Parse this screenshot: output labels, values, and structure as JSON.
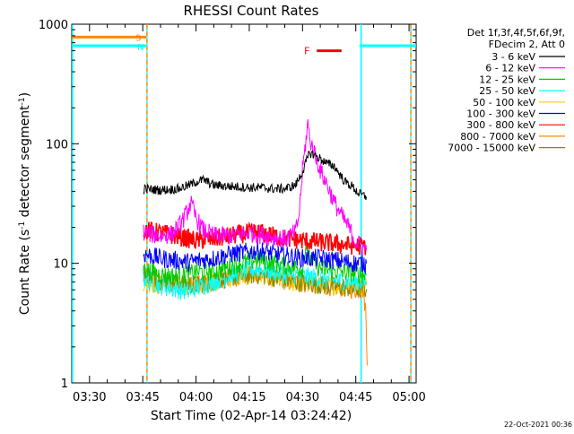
{
  "chart_data": {
    "type": "line",
    "title": "RHESSI Count Rates",
    "xlabel": "Start Time (02-Apr-14 03:24:42)",
    "ylabel_main": "Count Rate (s",
    "ylabel_sup1": "-1",
    "ylabel_mid": " detector segment",
    "ylabel_sup2": "-1",
    "ylabel_end": ")",
    "y_scale": "log",
    "ylim": [
      1,
      1000
    ],
    "xlim_minutes": [
      205,
      302
    ],
    "x_ticks": [
      {
        "min": 210,
        "label": "03:30"
      },
      {
        "min": 225,
        "label": "03:45"
      },
      {
        "min": 240,
        "label": "04:00"
      },
      {
        "min": 255,
        "label": "04:15"
      },
      {
        "min": 270,
        "label": "04:30"
      },
      {
        "min": 285,
        "label": "04:45"
      },
      {
        "min": 300,
        "label": "05:00"
      }
    ],
    "y_ticks": [
      {
        "value": 1,
        "label": "1"
      },
      {
        "value": 10,
        "label": "10"
      },
      {
        "value": 100,
        "label": "100"
      },
      {
        "value": 1000,
        "label": "1000"
      }
    ],
    "legend_header": [
      "Det 1f,3f,4f,5f,6f,9f,",
      "FDecim 2, Att 0"
    ],
    "legend_position": "right, outside plot",
    "series": [
      {
        "name": "3 - 6 keV",
        "color": "#000000",
        "points": [
          [
            225.2,
            42
          ],
          [
            230,
            41
          ],
          [
            235,
            42
          ],
          [
            238,
            45
          ],
          [
            240,
            48
          ],
          [
            242,
            50
          ],
          [
            245,
            45
          ],
          [
            250,
            44
          ],
          [
            255,
            43
          ],
          [
            258,
            43
          ],
          [
            262,
            42
          ],
          [
            265,
            42
          ],
          [
            268,
            45
          ],
          [
            270,
            58
          ],
          [
            271,
            70
          ],
          [
            272,
            84
          ],
          [
            273,
            82
          ],
          [
            275,
            75
          ],
          [
            277,
            68
          ],
          [
            279,
            65
          ],
          [
            280,
            58
          ],
          [
            282,
            48
          ],
          [
            284,
            44
          ],
          [
            286,
            38
          ],
          [
            288,
            36
          ]
        ]
      },
      {
        "name": "6 - 12 keV",
        "color": "#ff00ff",
        "points": [
          [
            225.2,
            18
          ],
          [
            230,
            17
          ],
          [
            233,
            17.5
          ],
          [
            235,
            20
          ],
          [
            237,
            25
          ],
          [
            238.5,
            32
          ],
          [
            240,
            24
          ],
          [
            242,
            19
          ],
          [
            245,
            17
          ],
          [
            250,
            17
          ],
          [
            255,
            18
          ],
          [
            260,
            17
          ],
          [
            265,
            16
          ],
          [
            268,
            18
          ],
          [
            269,
            25
          ],
          [
            270,
            60
          ],
          [
            271,
            110
          ],
          [
            271.5,
            150
          ],
          [
            272,
            110
          ],
          [
            273,
            90
          ],
          [
            275,
            60
          ],
          [
            277,
            45
          ],
          [
            279,
            32
          ],
          [
            281,
            25
          ],
          [
            283,
            20
          ],
          [
            285,
            15
          ],
          [
            288,
            13
          ]
        ]
      },
      {
        "name": "12 - 25 keV",
        "color": "#00cc00",
        "points": [
          [
            225.2,
            9
          ],
          [
            230,
            8
          ],
          [
            235,
            7.8
          ],
          [
            240,
            8.5
          ],
          [
            245,
            8.5
          ],
          [
            250,
            9.5
          ],
          [
            255,
            10.5
          ],
          [
            258,
            10.8
          ],
          [
            262,
            10
          ],
          [
            266,
            9.5
          ],
          [
            270,
            9
          ],
          [
            271,
            15
          ],
          [
            272,
            11
          ],
          [
            275,
            9
          ],
          [
            280,
            8.6
          ],
          [
            285,
            8.2
          ],
          [
            288,
            8
          ]
        ]
      },
      {
        "name": "25 - 50 keV",
        "color": "#00ffff",
        "points": [
          [
            225.2,
            7.5
          ],
          [
            230,
            6.5
          ],
          [
            235,
            6
          ],
          [
            238,
            5.8
          ],
          [
            240,
            6.2
          ],
          [
            245,
            7
          ],
          [
            250,
            8
          ],
          [
            255,
            8.8
          ],
          [
            258,
            9
          ],
          [
            262,
            8.5
          ],
          [
            266,
            8
          ],
          [
            270,
            7.8
          ],
          [
            275,
            7.5
          ],
          [
            280,
            7.2
          ],
          [
            285,
            7
          ],
          [
            288,
            7
          ]
        ]
      },
      {
        "name": "50 - 100 keV",
        "color": "#ffcc00",
        "points": [
          [
            225.2,
            7
          ],
          [
            230,
            6.5
          ],
          [
            240,
            6.5
          ],
          [
            250,
            7.5
          ],
          [
            258,
            8
          ],
          [
            265,
            7
          ],
          [
            275,
            6.5
          ],
          [
            288,
            6.5
          ]
        ]
      },
      {
        "name": "100 - 300 keV",
        "color": "#0000ff",
        "points": [
          [
            225.2,
            12
          ],
          [
            230,
            11
          ],
          [
            235,
            10.5
          ],
          [
            238,
            10.2
          ],
          [
            240,
            10.5
          ],
          [
            245,
            11
          ],
          [
            250,
            12
          ],
          [
            255,
            12.5
          ],
          [
            258,
            12.8
          ],
          [
            262,
            12
          ],
          [
            266,
            11.5
          ],
          [
            270,
            11
          ],
          [
            275,
            11
          ],
          [
            280,
            10.5
          ],
          [
            285,
            10
          ],
          [
            288,
            10
          ]
        ]
      },
      {
        "name": "300 - 800 keV",
        "color": "#ff0000",
        "points": [
          [
            225.2,
            19
          ],
          [
            230,
            18
          ],
          [
            235,
            16.8
          ],
          [
            240,
            15.5
          ],
          [
            245,
            16
          ],
          [
            250,
            17
          ],
          [
            255,
            18
          ],
          [
            258,
            18
          ],
          [
            262,
            17
          ],
          [
            266,
            16
          ],
          [
            270,
            15.5
          ],
          [
            275,
            15
          ],
          [
            280,
            14.5
          ],
          [
            285,
            14
          ],
          [
            288,
            14
          ]
        ]
      },
      {
        "name": "800 - 7000 keV",
        "color": "#ff8800",
        "points": [
          [
            225.2,
            8
          ],
          [
            230,
            7
          ],
          [
            235,
            6.5
          ],
          [
            240,
            6.5
          ],
          [
            245,
            7
          ],
          [
            250,
            7.5
          ],
          [
            255,
            8
          ],
          [
            258,
            8
          ],
          [
            262,
            7.5
          ],
          [
            266,
            7
          ],
          [
            270,
            6.8
          ],
          [
            275,
            6.5
          ],
          [
            280,
            6.3
          ],
          [
            285,
            6
          ],
          [
            287,
            6
          ],
          [
            287.8,
            4
          ],
          [
            288.2,
            1.4
          ]
        ]
      },
      {
        "name": "7000 - 15000 keV",
        "color": "#888800",
        "points": [
          [
            225.2,
            8.2
          ],
          [
            230,
            7.2
          ],
          [
            240,
            6.6
          ],
          [
            250,
            7.6
          ],
          [
            258,
            8.1
          ],
          [
            266,
            7.1
          ],
          [
            275,
            6.6
          ],
          [
            285,
            6.1
          ],
          [
            288,
            6.1
          ]
        ]
      }
    ],
    "attenuator_markers": {
      "S_label": "S",
      "N_label": "N",
      "F_label": "F",
      "S_line": {
        "x_min": 205,
        "x_max": 226,
        "y": 780
      },
      "N_line": {
        "x_min": 205,
        "x_max": 226,
        "y": 660
      },
      "N_line_right": {
        "x_min": 286,
        "x_max": 302,
        "y": 660
      },
      "F_bar": {
        "x_min": 274,
        "x_max": 281,
        "y": 600
      }
    },
    "vertical_markers": [
      {
        "min": 205.2,
        "color": "#00ffff",
        "style": "solid"
      },
      {
        "min": 226.2,
        "color": "#ff8800",
        "style": "dashed",
        "overlay": "#00ffff"
      },
      {
        "min": 286.5,
        "color": "#00ffff",
        "style": "solid"
      },
      {
        "min": 300.5,
        "color": "#ff8800",
        "style": "dashed",
        "overlay": "#00ffff"
      }
    ],
    "footer_timestamp": "22-Oct-2021 00:36"
  }
}
